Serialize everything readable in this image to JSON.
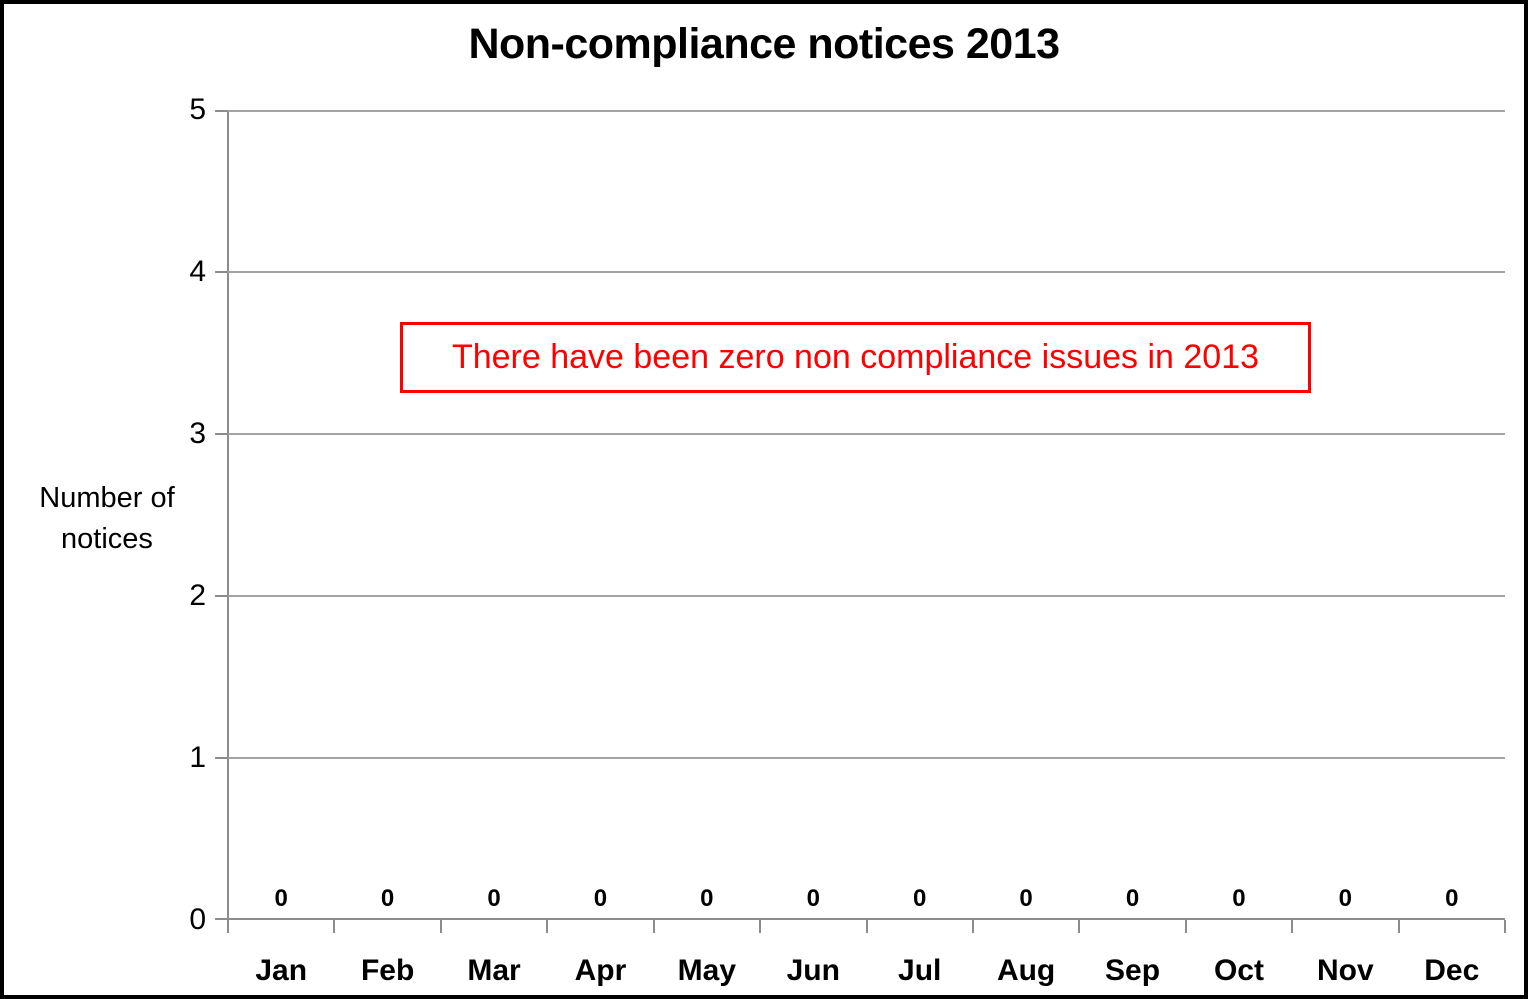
{
  "chart_data": {
    "type": "bar",
    "title": "Non-compliance notices 2013",
    "categories": [
      "Jan",
      "Feb",
      "Mar",
      "Apr",
      "May",
      "Jun",
      "Jul",
      "Aug",
      "Sep",
      "Oct",
      "Nov",
      "Dec"
    ],
    "values": [
      0,
      0,
      0,
      0,
      0,
      0,
      0,
      0,
      0,
      0,
      0,
      0
    ],
    "data_labels": [
      "0",
      "0",
      "0",
      "0",
      "0",
      "0",
      "0",
      "0",
      "0",
      "0",
      "0",
      "0"
    ],
    "xlabel": "",
    "ylabel": "Number of notices",
    "ylabel_lines": [
      "Number of",
      "notices"
    ],
    "yticks": [
      0,
      1,
      2,
      3,
      4,
      5
    ],
    "ylim": [
      0,
      5
    ],
    "grid": true,
    "legend": "none",
    "annotation": "There have been zero non compliance issues in 2013",
    "colors": {
      "gridline": "#A3A3A3",
      "axis": "#8C8C8C",
      "annotation": "#FF0000",
      "text": "#000000"
    }
  }
}
